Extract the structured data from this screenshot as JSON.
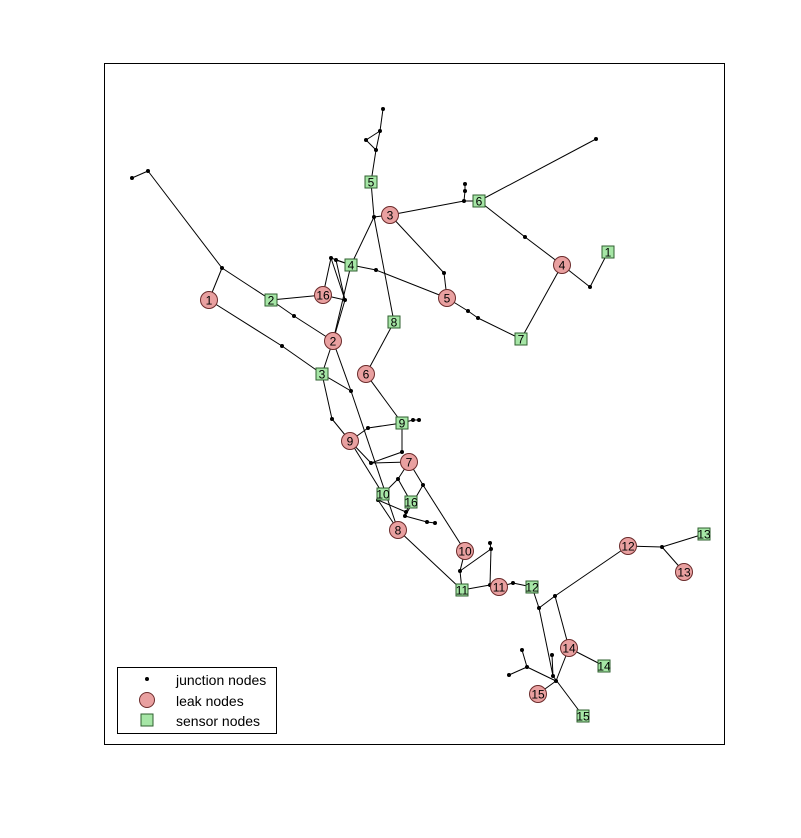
{
  "legend": {
    "junction_label": "junction nodes",
    "leak_label": "leak nodes",
    "sensor_label": "sensor nodes"
  },
  "colors": {
    "leak_fill": "#e9a0a0",
    "sensor_fill": "#a6e6a6",
    "edge": "#000000"
  },
  "leak_nodes": [
    "1",
    "2",
    "3",
    "4",
    "5",
    "6",
    "7",
    "8",
    "9",
    "10",
    "11",
    "12",
    "13",
    "14",
    "15",
    "16"
  ],
  "sensor_nodes": [
    "1",
    "2",
    "3",
    "4",
    "5",
    "6",
    "7",
    "8",
    "9",
    "10",
    "11",
    "12",
    "13",
    "14",
    "15",
    "16"
  ]
}
